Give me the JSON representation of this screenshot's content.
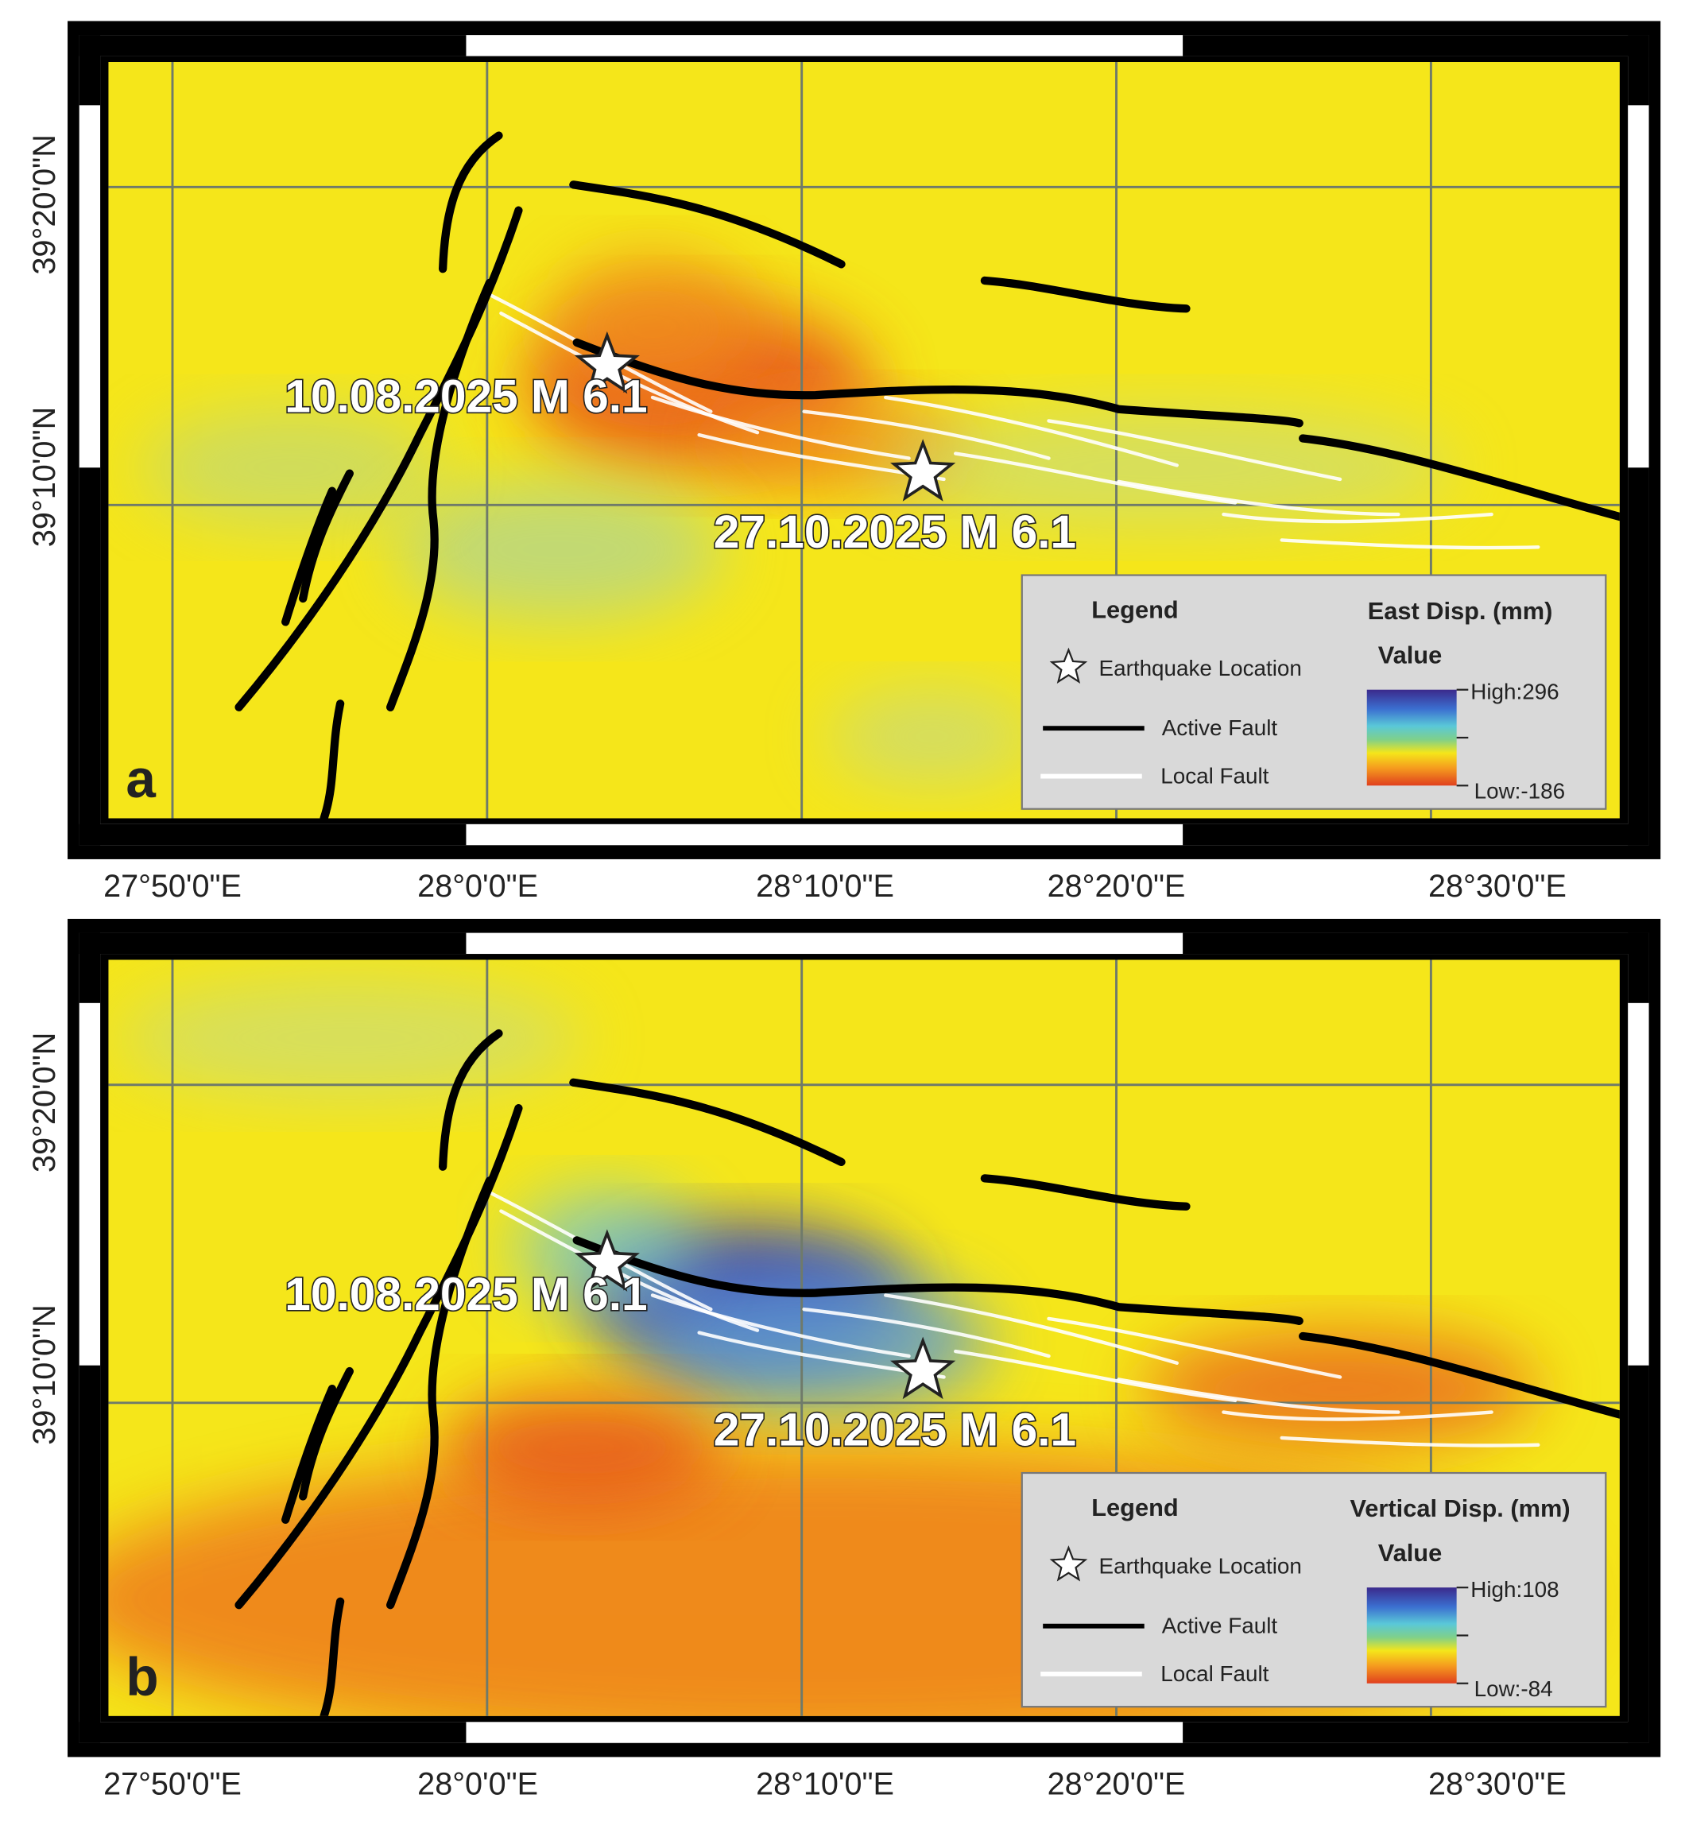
{
  "panels": [
    {
      "label": "a",
      "events": [
        "10.08.2025 M 6.1",
        "27.10.2025 M 6.1"
      ],
      "legend": {
        "title": "Legend",
        "items": [
          "Earthquake Location",
          "Active Fault",
          "Local Fault"
        ],
        "colorbar_title": "East Disp. (mm)",
        "value_heading": "Value",
        "high": "High:296",
        "low": "Low:-186"
      },
      "x_labels": [
        "27°50'0\"E",
        "28°0'0\"E",
        "28°10'0\"E",
        "28°20'0\"E",
        "28°30'0\"E"
      ],
      "y_labels": [
        "39°20'0\"N",
        "39°10'0\"N"
      ]
    },
    {
      "label": "b",
      "events": [
        "10.08.2025 M 6.1",
        "27.10.2025 M 6.1"
      ],
      "legend": {
        "title": "Legend",
        "items": [
          "Earthquake Location",
          "Active Fault",
          "Local Fault"
        ],
        "colorbar_title": "Vertical Disp. (mm)",
        "value_heading": "Value",
        "high": "High:108",
        "low": "Low:-84"
      },
      "x_labels": [
        "27°50'0\"E",
        "28°0'0\"E",
        "28°10'0\"E",
        "28°20'0\"E",
        "28°30'0\"E"
      ],
      "y_labels": [
        "39°20'0\"N",
        "39°10'0\"N"
      ]
    }
  ]
}
